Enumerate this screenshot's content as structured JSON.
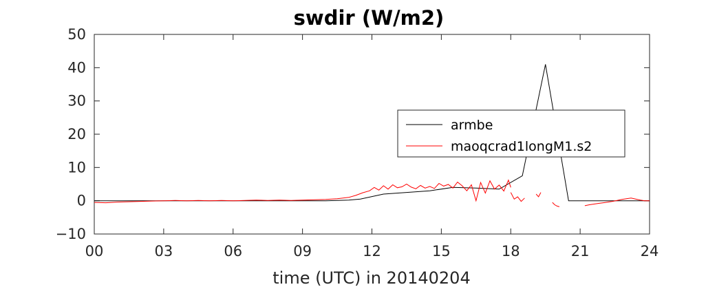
{
  "chart_data": {
    "type": "line",
    "title": "swdir  (W/m2)",
    "xlabel": "time (UTC) in 20140204",
    "ylabel": "",
    "xlim": [
      0,
      24
    ],
    "ylim": [
      -10,
      50
    ],
    "x_ticks": [
      0,
      3,
      6,
      9,
      12,
      15,
      18,
      21,
      24
    ],
    "x_tick_labels": [
      "00",
      "03",
      "06",
      "09",
      "12",
      "15",
      "18",
      "21",
      "24"
    ],
    "y_ticks": [
      -10,
      0,
      10,
      20,
      30,
      40,
      50
    ],
    "y_tick_labels": [
      "−10",
      "0",
      "10",
      "20",
      "30",
      "40",
      "50"
    ],
    "legend_position": "center-right",
    "series": [
      {
        "name": "armbe",
        "color": "#000000",
        "x": [
          0,
          1,
          2,
          3,
          4,
          5,
          6,
          7,
          8,
          9,
          10,
          11,
          11.5,
          12.5,
          13.5,
          14.5,
          15.5,
          16.5,
          17.5,
          18.5,
          19.5,
          20.5,
          21.5,
          22.5,
          23.5,
          24
        ],
        "y": [
          0,
          0,
          0,
          0,
          0,
          0,
          0,
          0,
          0,
          0,
          0,
          0.2,
          0.5,
          2,
          2.5,
          3,
          4,
          3.8,
          3.5,
          7.5,
          41,
          0,
          0,
          0,
          0,
          0
        ]
      },
      {
        "name": "maoqcrad1longM1.s2",
        "color": "#ff0000",
        "segments": [
          {
            "x": [
              0,
              0.5,
              1,
              1.5,
              2,
              2.5,
              3,
              3.5,
              4,
              4.5,
              5,
              5.5,
              6,
              6.5,
              7,
              7.5,
              8,
              8.5,
              9,
              9.5,
              10,
              10.5,
              11,
              11.3,
              11.6,
              11.9,
              12.1,
              12.3,
              12.5,
              12.7,
              12.9,
              13.1,
              13.3,
              13.5,
              13.7,
              13.9,
              14.1,
              14.3,
              14.5,
              14.7,
              14.9,
              15.1,
              15.3,
              15.5,
              15.7,
              15.9,
              16.1,
              16.3,
              16.5,
              16.7,
              16.9,
              17.1,
              17.3,
              17.5,
              17.7,
              17.9,
              18.0
            ],
            "y": [
              -0.5,
              -0.6,
              -0.4,
              -0.3,
              -0.2,
              -0.1,
              0,
              0.1,
              0,
              0.1,
              0,
              0.1,
              0,
              0.1,
              0.2,
              0.1,
              0.2,
              0.1,
              0.2,
              0.3,
              0.4,
              0.6,
              1.0,
              1.6,
              2.4,
              3.0,
              4.0,
              3.2,
              4.5,
              3.5,
              4.8,
              3.9,
              4.2,
              5.0,
              4.1,
              3.6,
              4.6,
              3.8,
              4.3,
              3.7,
              5.2,
              4.4,
              4.9,
              3.8,
              5.6,
              4.5,
              3.0,
              4.8,
              0,
              5.5,
              2.3,
              6.0,
              3.5,
              4.7,
              2.9,
              6.2,
              4.0
            ]
          },
          {
            "x": [
              18.0,
              18.15,
              18.3,
              18.45,
              18.6
            ],
            "y": [
              2.5,
              0.5,
              1.2,
              -0.2,
              0.8
            ]
          },
          {
            "x": [
              19.1,
              19.2,
              19.3
            ],
            "y": [
              2.0,
              1.2,
              2.5
            ]
          },
          {
            "x": [
              19.8,
              19.9,
              20.0,
              20.1
            ],
            "y": [
              -0.5,
              -1.2,
              -1.6,
              -1.8
            ]
          },
          {
            "x": [
              21.2,
              21.4,
              21.6,
              21.8,
              22.0,
              22.2,
              22.4,
              22.6,
              22.8,
              23.0,
              23.2,
              23.4,
              23.6,
              23.8,
              24.0
            ],
            "y": [
              -1.5,
              -1.2,
              -1.0,
              -0.8,
              -0.6,
              -0.4,
              -0.2,
              0.1,
              0.4,
              0.6,
              0.8,
              0.5,
              0.2,
              0.0,
              0.0
            ]
          }
        ]
      }
    ]
  }
}
